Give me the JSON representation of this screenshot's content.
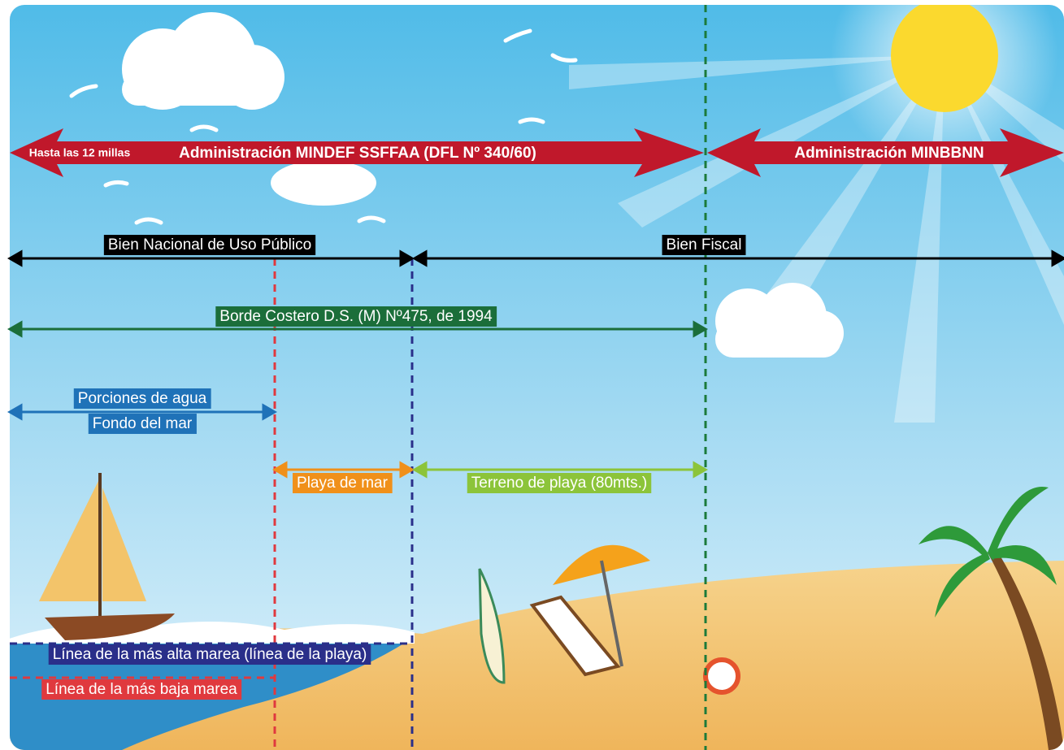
{
  "administration": {
    "note": "Hasta las 12  millas",
    "left": "Administración MINDEF SSFFAA (DFL Nº 340/60)",
    "right": "Administración MINBBNN"
  },
  "property": {
    "left": "Bien Nacional de Uso Público",
    "right": "Bien Fiscal"
  },
  "coastal_border": "Borde Costero D.S. (M) Nº475, de 1994",
  "water": {
    "line1": "Porciones de agua",
    "line2": "Fondo del mar"
  },
  "beach": {
    "sea_beach": "Playa de mar",
    "beach_land": "Terreno de playa (80mts.)"
  },
  "tide_lines": {
    "high": "Línea de la más alta marea (línea de la playa)",
    "low": "Línea de la más baja marea"
  }
}
